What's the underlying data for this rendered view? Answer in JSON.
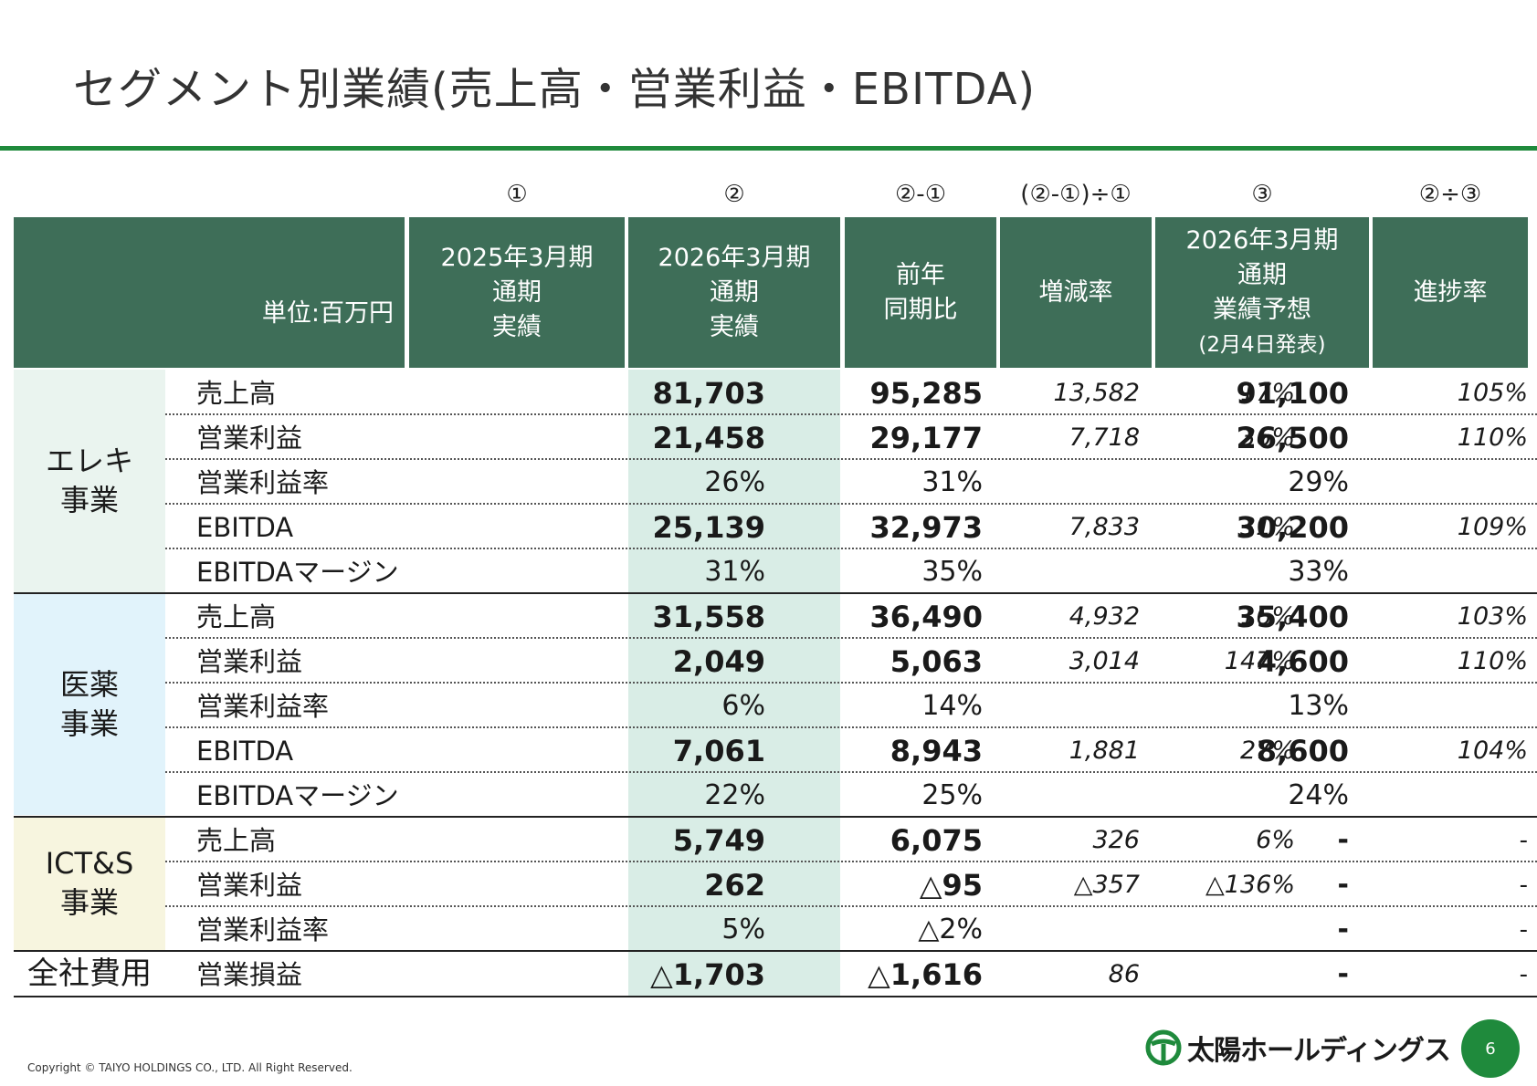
{
  "title": "セグメント別業績(売上高・営業利益・EBITDA)",
  "colors": {
    "accent": "#1f8a3c",
    "header_bg": "#3e6e58",
    "elec_bg": "#eaf4ef",
    "med_bg": "#e1f3fb",
    "ict_bg": "#f7f5df",
    "col2_bg": "#d9ede6"
  },
  "column_numbers": [
    "①",
    "②",
    "②-①",
    "(②-①)÷①",
    "③",
    "②÷③"
  ],
  "headers": {
    "unit": "単位:百万円",
    "col1": [
      "2025年3月期",
      "通期",
      "実績"
    ],
    "col2": [
      "2026年3月期",
      "通期",
      "実績"
    ],
    "col3": [
      "前年",
      "同期比"
    ],
    "col4": "増減率",
    "col5": [
      "2026年3月期",
      "通期",
      "業績予想"
    ],
    "col5_sub": "(2月4日発表)",
    "col6": "進捗率"
  },
  "segments": {
    "elec": {
      "label": [
        "エレキ",
        "事業"
      ]
    },
    "med": {
      "label": [
        "医薬",
        "事業"
      ]
    },
    "ict": {
      "label": [
        "ICT&S",
        "事業"
      ]
    },
    "corp": {
      "label": [
        "全社費用"
      ]
    }
  },
  "rows": [
    {
      "name": "売上高",
      "c1": "81,703",
      "c2": "95,285",
      "c3": "13,582",
      "c4": "17%",
      "c5": "91,100",
      "c6": "105%"
    },
    {
      "name": "営業利益",
      "c1": "21,458",
      "c2": "29,177",
      "c3": "7,718",
      "c4": "36%",
      "c5": "26,500",
      "c6": "110%"
    },
    {
      "name": "営業利益率",
      "c1": "26%",
      "c2": "31%",
      "c3": "",
      "c4": "",
      "c5": "29%",
      "c6": ""
    },
    {
      "name": "EBITDA",
      "c1": "25,139",
      "c2": "32,973",
      "c3": "7,833",
      "c4": "31%",
      "c5": "30,200",
      "c6": "109%"
    },
    {
      "name": "EBITDAマージン",
      "c1": "31%",
      "c2": "35%",
      "c3": "",
      "c4": "",
      "c5": "33%",
      "c6": ""
    },
    {
      "name": "売上高",
      "c1": "31,558",
      "c2": "36,490",
      "c3": "4,932",
      "c4": "16%",
      "c5": "35,400",
      "c6": "103%"
    },
    {
      "name": "営業利益",
      "c1": "2,049",
      "c2": "5,063",
      "c3": "3,014",
      "c4": "147%",
      "c5": "4,600",
      "c6": "110%"
    },
    {
      "name": "営業利益率",
      "c1": "6%",
      "c2": "14%",
      "c3": "",
      "c4": "",
      "c5": "13%",
      "c6": ""
    },
    {
      "name": "EBITDA",
      "c1": "7,061",
      "c2": "8,943",
      "c3": "1,881",
      "c4": "27%",
      "c5": "8,600",
      "c6": "104%"
    },
    {
      "name": "EBITDAマージン",
      "c1": "22%",
      "c2": "25%",
      "c3": "",
      "c4": "",
      "c5": "24%",
      "c6": ""
    },
    {
      "name": "売上高",
      "c1": "5,749",
      "c2": "6,075",
      "c3": "326",
      "c4": "6%",
      "c5": "-",
      "c6": "-"
    },
    {
      "name": "営業利益",
      "c1": "262",
      "c2": "△95",
      "c3": "△357",
      "c4": "△136%",
      "c5": "-",
      "c6": "-"
    },
    {
      "name": "営業利益率",
      "c1": "5%",
      "c2": "△2%",
      "c3": "",
      "c4": "",
      "c5": "-",
      "c6": "-"
    },
    {
      "name": "営業損益",
      "c1": "△1,703",
      "c2": "△1,616",
      "c3": "86",
      "c4": "",
      "c5": "-",
      "c6": "-"
    }
  ],
  "footer": {
    "copyright": "Copyright © TAIYO HOLDINGS CO., LTD.  All Right Reserved.",
    "company": "太陽ホールディングス",
    "page": "6"
  }
}
